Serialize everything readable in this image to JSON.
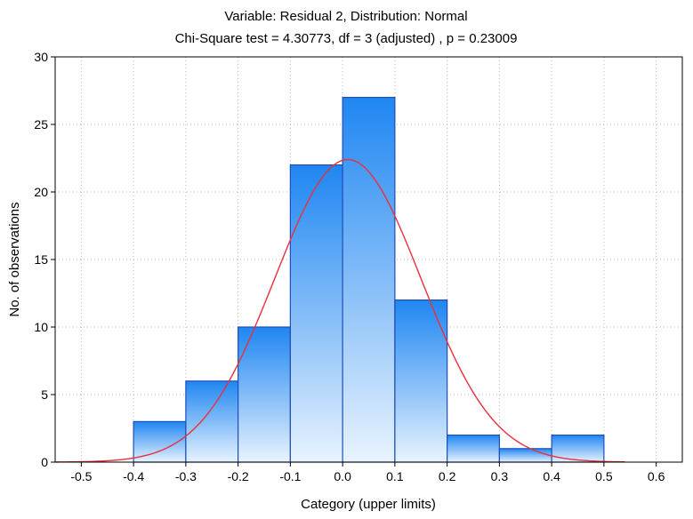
{
  "chart_data": {
    "type": "bar",
    "title": "Variable: Residual 2, Distribution: Normal",
    "subtitle": "Chi-Square test = 4.30773, df = 3 (adjusted) , p = 0.23009",
    "xlabel": "Category (upper limits)",
    "ylabel": "No. of observations",
    "xlim": [
      -0.55,
      0.65
    ],
    "ylim": [
      0,
      30
    ],
    "x_ticks": [
      "-0.5",
      "-0.4",
      "-0.3",
      "-0.2",
      "-0.1",
      "0.0",
      "0.1",
      "0.2",
      "0.3",
      "0.4",
      "0.5",
      "0.6"
    ],
    "y_ticks": [
      "0",
      "5",
      "10",
      "15",
      "20",
      "25",
      "30"
    ],
    "bins": [
      {
        "lower": -0.4,
        "upper": -0.3,
        "count": 3
      },
      {
        "lower": -0.3,
        "upper": -0.2,
        "count": 6
      },
      {
        "lower": -0.2,
        "upper": -0.1,
        "count": 10
      },
      {
        "lower": -0.1,
        "upper": 0.0,
        "count": 22
      },
      {
        "lower": 0.0,
        "upper": 0.1,
        "count": 27
      },
      {
        "lower": 0.1,
        "upper": 0.2,
        "count": 12
      },
      {
        "lower": 0.2,
        "upper": 0.3,
        "count": 2
      },
      {
        "lower": 0.3,
        "upper": 0.4,
        "count": 1
      },
      {
        "lower": 0.4,
        "upper": 0.5,
        "count": 2
      }
    ],
    "normal_curve": {
      "distribution": "Normal",
      "mean": 0.01,
      "sd": 0.14,
      "peak": 22.4,
      "x_range": [
        -0.55,
        0.54
      ]
    },
    "grid": true,
    "colors": {
      "bar_top": "#1f86f2",
      "bar_bottom": "#e8f3fe",
      "bar_stroke": "#1f4fb8",
      "curve": "#e8303e",
      "grid": "#b8b8b8"
    }
  }
}
